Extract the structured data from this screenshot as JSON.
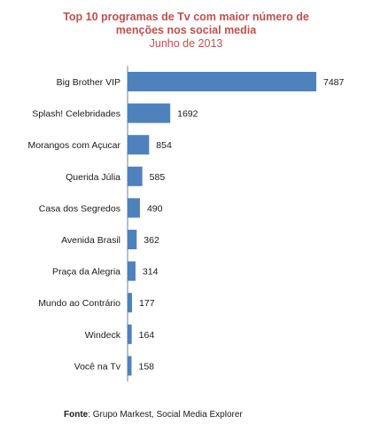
{
  "chart_data": {
    "type": "bar",
    "orientation": "horizontal",
    "title_lines": [
      "Top 10 programas de Tv com maior número de",
      "menções nos social media"
    ],
    "subtitle": "Junho de 2013",
    "categories": [
      "Big Brother VIP",
      "Splash! Celebridades",
      "Morangos com Açucar",
      "Querida Júlia",
      "Casa dos Segredos",
      "Avenida Brasil",
      "Praça da Alegria",
      "Mundo ao Contrário",
      "Windeck",
      "Você na Tv"
    ],
    "values": [
      7487,
      1692,
      854,
      585,
      490,
      362,
      314,
      177,
      164,
      158
    ],
    "xlim": [
      0,
      7487
    ],
    "grid": false,
    "legend": "none",
    "data_labels": true,
    "colors": {
      "bar": "#4f81bd",
      "title": "#c0504d",
      "axis": "#7f7f7f"
    }
  },
  "source": {
    "label": "Fonte",
    "text": ": Grupo Markest, Social Media Explorer"
  }
}
